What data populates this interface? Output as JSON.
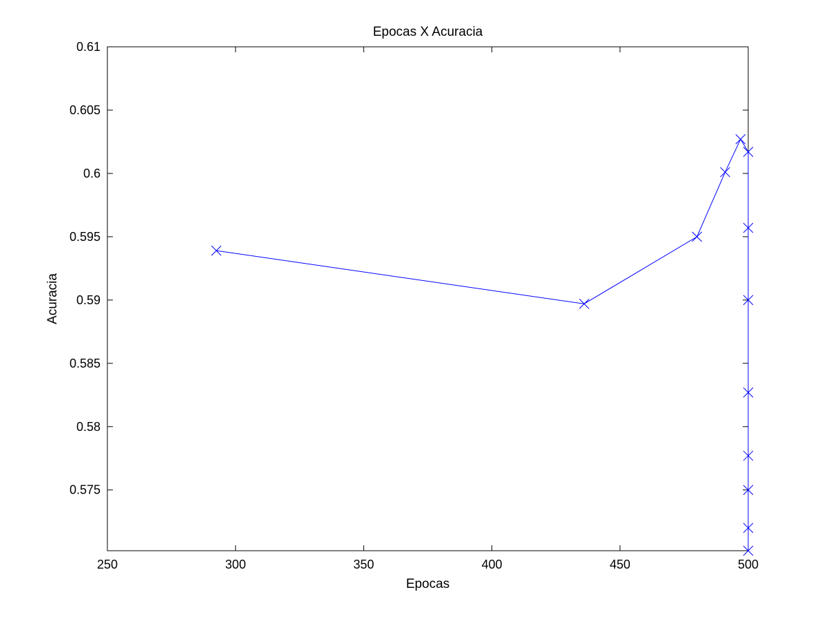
{
  "chart_data": {
    "type": "line",
    "title": "Epocas X Acuracia",
    "xlabel": "Epocas",
    "ylabel": "Acuracia",
    "xlim": [
      250,
      500
    ],
    "ylim": [
      0.5702,
      0.61
    ],
    "xticks": [
      "250",
      "300",
      "350",
      "400",
      "450",
      "500"
    ],
    "yticks": [
      "0.575",
      "0.58",
      "0.585",
      "0.59",
      "0.595",
      "0.6",
      "0.605",
      "0.61"
    ],
    "x_tick_values": [
      250,
      300,
      350,
      400,
      450,
      500
    ],
    "y_tick_values": [
      0.575,
      0.58,
      0.585,
      0.59,
      0.595,
      0.6,
      0.605,
      0.61
    ],
    "grid": false,
    "box": true,
    "series_color": "#0000ff",
    "marker": "x",
    "series": [
      {
        "x": [
          292.5,
          436,
          480,
          491,
          497,
          500,
          500,
          500,
          500,
          500,
          500,
          500,
          500
        ],
        "y": [
          0.5939,
          0.5897,
          0.595,
          0.6001,
          0.6027,
          0.6017,
          0.5957,
          0.59,
          0.5827,
          0.5777,
          0.575,
          0.572,
          0.5702
        ]
      }
    ]
  }
}
